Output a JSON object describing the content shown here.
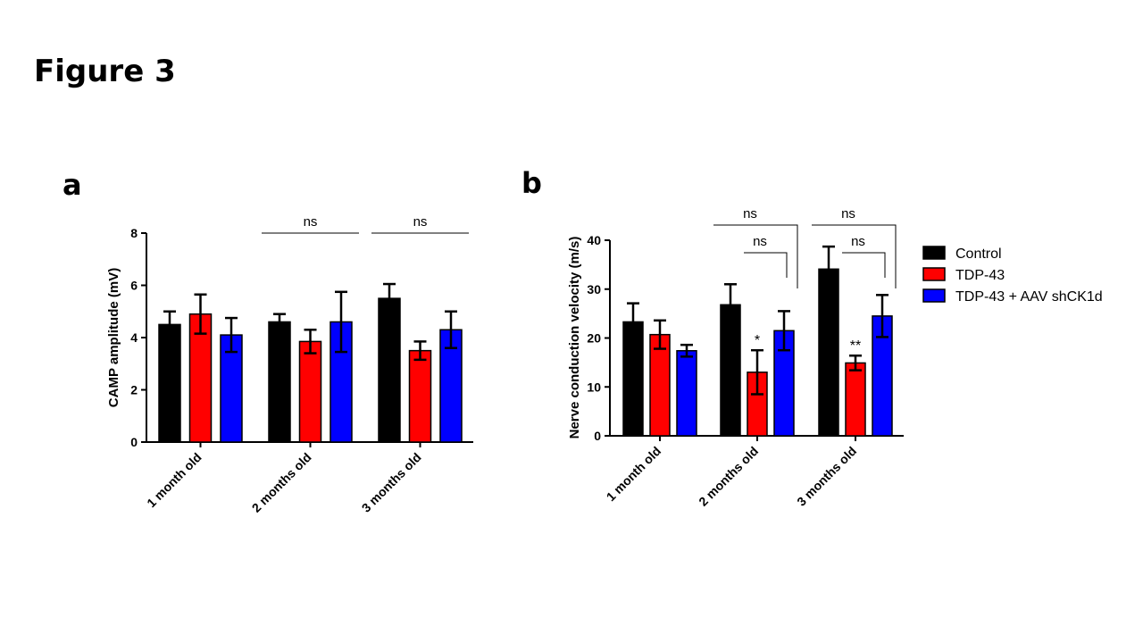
{
  "figure_title": "Figure 3",
  "colors": {
    "control": "#000000",
    "tdp43": "#ff0000",
    "tdp43_aav": "#0000ff"
  },
  "legend": [
    {
      "label": "Control",
      "color": "#000000"
    },
    {
      "label": "TDP-43",
      "color": "#ff0000"
    },
    {
      "label": "TDP-43 + AAV shCK1d",
      "color": "#0000ff"
    }
  ],
  "chart_data": [
    {
      "panel": "a",
      "type": "bar",
      "ylabel": "CAMP amplitude (mV)",
      "ylim": [
        0,
        8
      ],
      "yticks": [
        0,
        2,
        4,
        6,
        8
      ],
      "categories": [
        "1 month old",
        "2 months old",
        "3 months old"
      ],
      "series": [
        {
          "name": "Control",
          "color": "#000000",
          "values": [
            4.5,
            4.6,
            5.5
          ],
          "errors": [
            0.5,
            0.3,
            0.55
          ]
        },
        {
          "name": "TDP-43",
          "color": "#ff0000",
          "values": [
            4.9,
            3.85,
            3.5
          ],
          "errors": [
            0.75,
            0.45,
            0.35
          ]
        },
        {
          "name": "TDP-43 + AAV shCK1d",
          "color": "#0000ff",
          "values": [
            4.1,
            4.6,
            4.3
          ],
          "errors": [
            0.65,
            1.15,
            0.7
          ]
        }
      ],
      "annotations": [
        {
          "text": "ns",
          "category": 1,
          "from": 0,
          "to": 2,
          "level": 0
        },
        {
          "text": "ns",
          "category": 2,
          "from": 0,
          "to": 2,
          "level": 0
        }
      ]
    },
    {
      "panel": "b",
      "type": "bar",
      "ylabel": "Nerve conduction velocity (m/s)",
      "ylim": [
        0,
        40
      ],
      "yticks": [
        0,
        10,
        20,
        30,
        40
      ],
      "categories": [
        "1 month old",
        "2 months old",
        "3 months old"
      ],
      "series": [
        {
          "name": "Control",
          "color": "#000000",
          "values": [
            23.3,
            26.8,
            34.1
          ],
          "errors": [
            3.8,
            4.2,
            4.6
          ]
        },
        {
          "name": "TDP-43",
          "color": "#ff0000",
          "values": [
            20.7,
            13.0,
            14.9
          ],
          "errors": [
            2.9,
            4.5,
            1.5
          ]
        },
        {
          "name": "TDP-43 + AAV shCK1d",
          "color": "#0000ff",
          "values": [
            17.4,
            21.5,
            24.5
          ],
          "errors": [
            1.2,
            4.0,
            4.3
          ]
        }
      ],
      "significance": [
        {
          "text": "*",
          "category": 1,
          "series": 1
        },
        {
          "text": "**",
          "category": 2,
          "series": 1
        }
      ],
      "annotations": [
        {
          "text": "ns",
          "category": 1,
          "bracket": "control-vs-aav"
        },
        {
          "text": "ns",
          "category": 1,
          "bracket": "tdp43-vs-aav"
        },
        {
          "text": "ns",
          "category": 2,
          "bracket": "control-vs-aav"
        },
        {
          "text": "ns",
          "category": 2,
          "bracket": "tdp43-vs-aav"
        }
      ]
    }
  ]
}
